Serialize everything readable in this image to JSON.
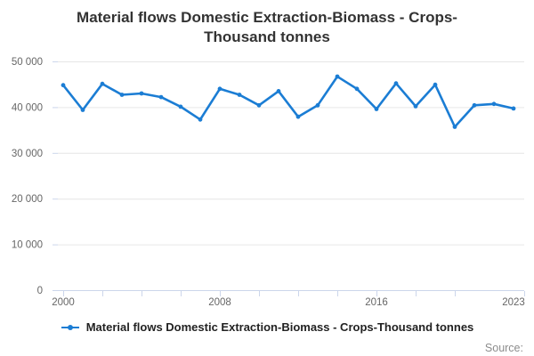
{
  "title": "Material flows Domestic Extraction-Biomass - Crops-Thousand tonnes",
  "source": {
    "label": "Source:"
  },
  "colors": {
    "series_blue": "#1b7dd4",
    "gridline": "#e6e6e6",
    "axis": "#ccd6eb",
    "axis_label": "#666666",
    "title_text": "#333333",
    "legend_text": "#222222",
    "source_text": "#8c8c8c"
  },
  "chart_data": {
    "type": "line",
    "title": "Material flows Domestic Extraction-Biomass - Crops-Thousand tonnes",
    "xlabel": "",
    "ylabel": "",
    "grid": true,
    "legend_position": "bottom",
    "x": [
      2000,
      2001,
      2002,
      2003,
      2004,
      2005,
      2006,
      2007,
      2008,
      2009,
      2010,
      2011,
      2012,
      2013,
      2014,
      2015,
      2016,
      2017,
      2018,
      2019,
      2020,
      2021,
      2022,
      2023
    ],
    "series": [
      {
        "name": "Material flows Domestic Extraction-Biomass - Crops-Thousand tonnes",
        "color": "#1b7dd4",
        "values": [
          44800,
          39400,
          45100,
          42700,
          43000,
          42200,
          40100,
          37300,
          44000,
          42700,
          40400,
          43500,
          37900,
          40400,
          46700,
          44000,
          39600,
          45200,
          40200,
          44900,
          35700,
          40400,
          40700,
          39700
        ]
      }
    ],
    "ylim": [
      0,
      50000
    ],
    "y_ticks": [
      {
        "value": 0,
        "label": "0"
      },
      {
        "value": 10000,
        "label": "10 000"
      },
      {
        "value": 20000,
        "label": "20 000"
      },
      {
        "value": 30000,
        "label": "30 000"
      },
      {
        "value": 40000,
        "label": "40 000"
      },
      {
        "value": 50000,
        "label": "50 000"
      }
    ],
    "x_tick_years": [
      2000,
      2002,
      2004,
      2006,
      2008,
      2010,
      2012,
      2014,
      2016,
      2018,
      2020
    ],
    "x_labeled_ticks": [
      {
        "year": 2000,
        "label": "2000"
      },
      {
        "year": 2008,
        "label": "2008"
      },
      {
        "year": 2016,
        "label": "2016"
      },
      {
        "year": 2023,
        "label": "2023"
      }
    ]
  }
}
